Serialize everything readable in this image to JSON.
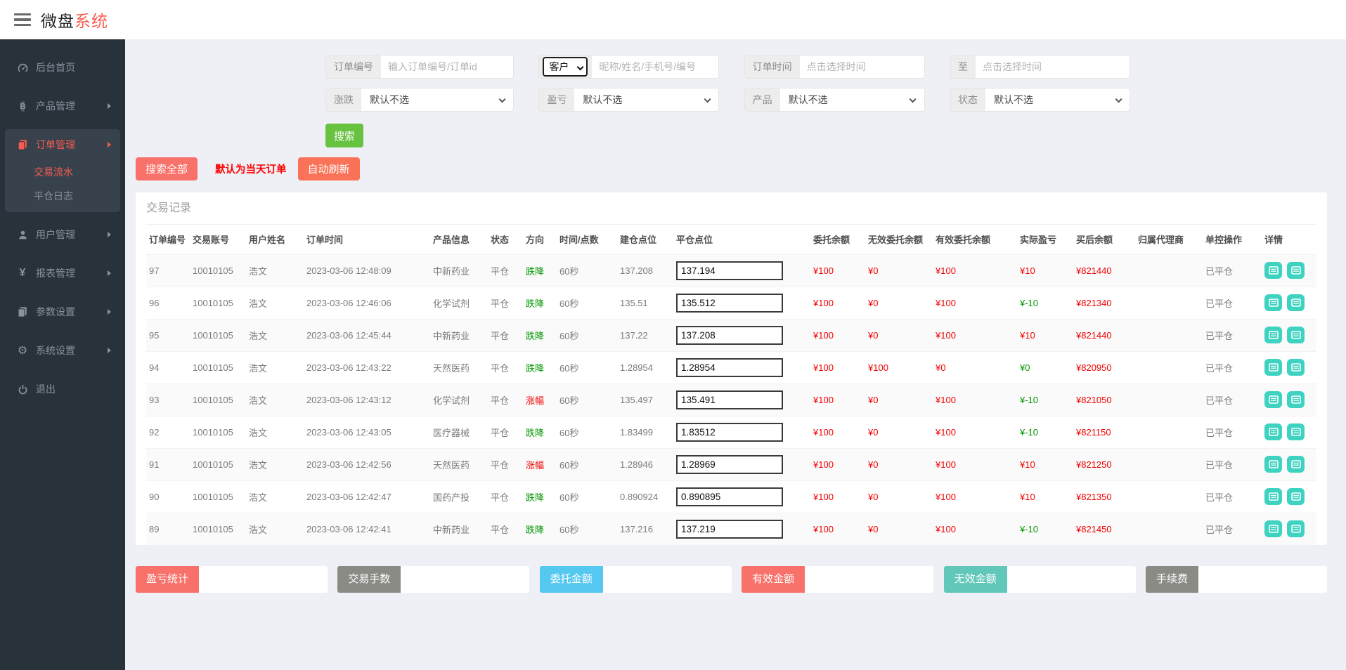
{
  "topbar": {
    "title": {
      "primary": "微盘",
      "secondary": "系统"
    }
  },
  "sidebar": {
    "items": [
      {
        "label": "后台首页",
        "icon": "dashboard-icon",
        "expandable": false,
        "active": false
      },
      {
        "label": "产品管理",
        "icon": "bitcoin-icon",
        "expandable": true,
        "active": false
      },
      {
        "label": "订单管理",
        "icon": "copy-icon",
        "expandable": true,
        "active": true,
        "children": [
          {
            "label": "交易流水",
            "active": true
          },
          {
            "label": "平仓日志",
            "active": false
          }
        ]
      },
      {
        "label": "用户管理",
        "icon": "user-icon",
        "expandable": true,
        "active": false
      },
      {
        "label": "报表管理",
        "icon": "yen-icon",
        "expandable": true,
        "active": false
      },
      {
        "label": "参数设置",
        "icon": "copy-icon",
        "expandable": true,
        "active": false
      },
      {
        "label": "系统设置",
        "icon": "gears-icon",
        "expandable": true,
        "active": false
      },
      {
        "label": "退出",
        "icon": "power-icon",
        "expandable": false,
        "active": false
      }
    ]
  },
  "filters": {
    "order_no": {
      "label": "订单编号",
      "placeholder": "输入订单编号/订单id",
      "value": ""
    },
    "customer": {
      "selected": "客户",
      "placeholder": "昵称/姓名/手机号/编号",
      "value": ""
    },
    "time_from": {
      "label": "订单时间",
      "placeholder": "点击选择时间",
      "value": ""
    },
    "time_to": {
      "label": "至",
      "placeholder": "点击选择时间",
      "value": ""
    },
    "rise_fall": {
      "label": "涨跌",
      "selected": "默认不选"
    },
    "profit_loss": {
      "label": "盈亏",
      "selected": "默认不选"
    },
    "product": {
      "label": "产品",
      "selected": "默认不选"
    },
    "status": {
      "label": "状态",
      "selected": "默认不选"
    }
  },
  "actions": {
    "search": "搜索",
    "search_all": "搜索全部",
    "default_today": "默认为当天订单",
    "auto_refresh": "自动刷新"
  },
  "panel": {
    "title": "交易记录"
  },
  "table": {
    "columns": [
      "订单编号",
      "交易账号",
      "用户姓名",
      "订单时间",
      "产品信息",
      "状态",
      "方向",
      "时间/点数",
      "建仓点位",
      "平仓点位",
      "委托余额",
      "无效委托余额",
      "有效委托余额",
      "实际盈亏",
      "买后余额",
      "归属代理商",
      "单控操作",
      "详情"
    ],
    "rows": [
      {
        "order_no": "97",
        "account": "10010105",
        "user_name": "浩文",
        "order_time": "2023-03-06 12:48:09",
        "product": "中新药业",
        "status": "平仓",
        "direction": "跌降",
        "direction_color": "green",
        "time_points": "60秒",
        "open_point": "137.208",
        "close_point": "137.194",
        "entrust_balance": "¥100",
        "invalid_entrust": "¥0",
        "valid_entrust": "¥100",
        "actual_pl": "¥10",
        "pl_color": "red",
        "balance_after": "¥821440",
        "agent": "",
        "control": "已平仓"
      },
      {
        "order_no": "96",
        "account": "10010105",
        "user_name": "浩文",
        "order_time": "2023-03-06 12:46:06",
        "product": "化学试剂",
        "status": "平仓",
        "direction": "跌降",
        "direction_color": "green",
        "time_points": "60秒",
        "open_point": "135.51",
        "close_point": "135.512",
        "entrust_balance": "¥100",
        "invalid_entrust": "¥0",
        "valid_entrust": "¥100",
        "actual_pl": "¥-10",
        "pl_color": "green",
        "balance_after": "¥821340",
        "agent": "",
        "control": "已平仓"
      },
      {
        "order_no": "95",
        "account": "10010105",
        "user_name": "浩文",
        "order_time": "2023-03-06 12:45:44",
        "product": "中新药业",
        "status": "平仓",
        "direction": "跌降",
        "direction_color": "green",
        "time_points": "60秒",
        "open_point": "137.22",
        "close_point": "137.208",
        "entrust_balance": "¥100",
        "invalid_entrust": "¥0",
        "valid_entrust": "¥100",
        "actual_pl": "¥10",
        "pl_color": "red",
        "balance_after": "¥821440",
        "agent": "",
        "control": "已平仓"
      },
      {
        "order_no": "94",
        "account": "10010105",
        "user_name": "浩文",
        "order_time": "2023-03-06 12:43:22",
        "product": "天然医药",
        "status": "平仓",
        "direction": "跌降",
        "direction_color": "green",
        "time_points": "60秒",
        "open_point": "1.28954",
        "close_point": "1.28954",
        "entrust_balance": "¥100",
        "invalid_entrust": "¥100",
        "valid_entrust": "¥0",
        "actual_pl": "¥0",
        "pl_color": "green",
        "balance_after": "¥820950",
        "agent": "",
        "control": "已平仓"
      },
      {
        "order_no": "93",
        "account": "10010105",
        "user_name": "浩文",
        "order_time": "2023-03-06 12:43:12",
        "product": "化学试剂",
        "status": "平仓",
        "direction": "涨幅",
        "direction_color": "red",
        "time_points": "60秒",
        "open_point": "135.497",
        "close_point": "135.491",
        "entrust_balance": "¥100",
        "invalid_entrust": "¥0",
        "valid_entrust": "¥100",
        "actual_pl": "¥-10",
        "pl_color": "green",
        "balance_after": "¥821050",
        "agent": "",
        "control": "已平仓"
      },
      {
        "order_no": "92",
        "account": "10010105",
        "user_name": "浩文",
        "order_time": "2023-03-06 12:43:05",
        "product": "医疗器械",
        "status": "平仓",
        "direction": "跌降",
        "direction_color": "green",
        "time_points": "60秒",
        "open_point": "1.83499",
        "close_point": "1.83512",
        "entrust_balance": "¥100",
        "invalid_entrust": "¥0",
        "valid_entrust": "¥100",
        "actual_pl": "¥-10",
        "pl_color": "green",
        "balance_after": "¥821150",
        "agent": "",
        "control": "已平仓"
      },
      {
        "order_no": "91",
        "account": "10010105",
        "user_name": "浩文",
        "order_time": "2023-03-06 12:42:56",
        "product": "天然医药",
        "status": "平仓",
        "direction": "涨幅",
        "direction_color": "red",
        "time_points": "60秒",
        "open_point": "1.28946",
        "close_point": "1.28969",
        "entrust_balance": "¥100",
        "invalid_entrust": "¥0",
        "valid_entrust": "¥100",
        "actual_pl": "¥10",
        "pl_color": "red",
        "balance_after": "¥821250",
        "agent": "",
        "control": "已平仓"
      },
      {
        "order_no": "90",
        "account": "10010105",
        "user_name": "浩文",
        "order_time": "2023-03-06 12:42:47",
        "product": "国药产投",
        "status": "平仓",
        "direction": "跌降",
        "direction_color": "green",
        "time_points": "60秒",
        "open_point": "0.890924",
        "close_point": "0.890895",
        "entrust_balance": "¥100",
        "invalid_entrust": "¥0",
        "valid_entrust": "¥100",
        "actual_pl": "¥10",
        "pl_color": "red",
        "balance_after": "¥821350",
        "agent": "",
        "control": "已平仓"
      },
      {
        "order_no": "89",
        "account": "10010105",
        "user_name": "浩文",
        "order_time": "2023-03-06 12:42:41",
        "product": "中新药业",
        "status": "平仓",
        "direction": "跌降",
        "direction_color": "green",
        "time_points": "60秒",
        "open_point": "137.216",
        "close_point": "137.219",
        "entrust_balance": "¥100",
        "invalid_entrust": "¥0",
        "valid_entrust": "¥100",
        "actual_pl": "¥-10",
        "pl_color": "green",
        "balance_after": "¥821450",
        "agent": "",
        "control": "已平仓"
      }
    ]
  },
  "footer_stats": [
    {
      "label": "盈亏统计",
      "value": "",
      "color": "#f8716a"
    },
    {
      "label": "交易手数",
      "value": "",
      "color": "#8b8b86"
    },
    {
      "label": "委托金额",
      "value": "",
      "color": "#55c8f0"
    },
    {
      "label": "有效金额",
      "value": "",
      "color": "#f8716a"
    },
    {
      "label": "无效金额",
      "value": "",
      "color": "#61c8b9"
    },
    {
      "label": "手续费",
      "value": "",
      "color": "#8b8b86"
    }
  ],
  "colors": {
    "brand_red": "#f95b50",
    "sidebar_bg": "#28323b",
    "sidebar_active_bg": "#37424d",
    "search_green": "#67c23f",
    "salmon": "#f8716a",
    "orange": "#fa7257",
    "teal_button": "#3ed3c0",
    "text_red": "#f20000",
    "text_green": "#009600"
  }
}
